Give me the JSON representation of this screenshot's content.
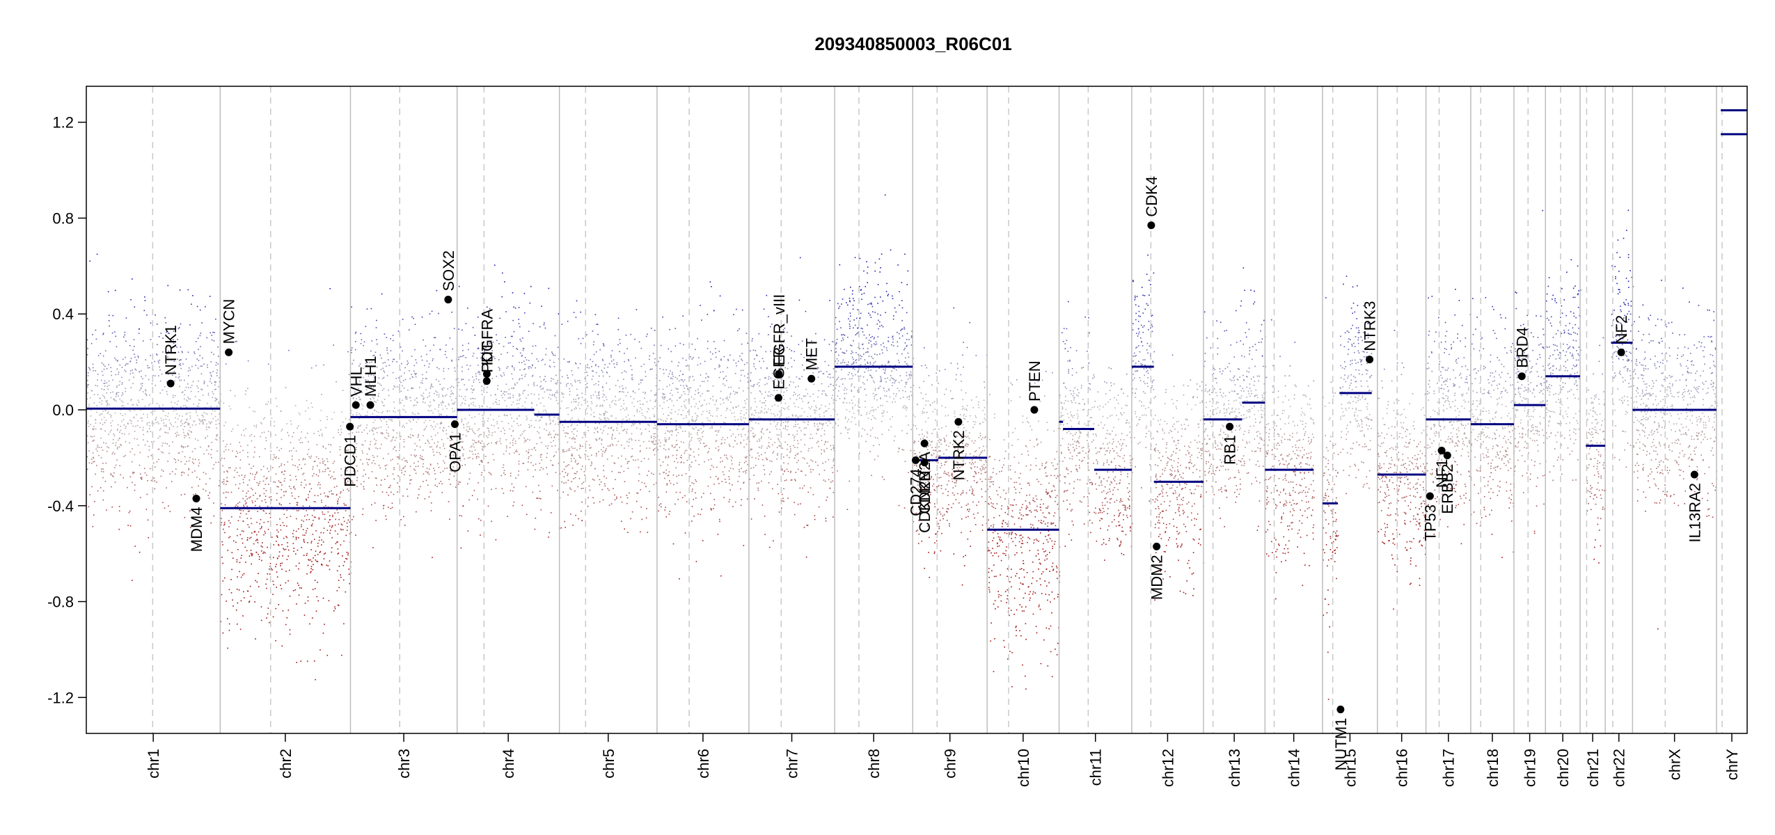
{
  "chart_data": {
    "type": "scatter",
    "title": "209340850003_R06C01",
    "xlabel": "",
    "ylabel": "",
    "ylim": [
      -1.35,
      1.35
    ],
    "yticks": [
      "1.2",
      "0.8",
      "0.4",
      "0.0",
      "-0.4",
      "-0.8",
      "-1.2"
    ],
    "y_tick_values": [
      1.2,
      0.8,
      0.4,
      0.0,
      -0.4,
      -0.8,
      -1.2
    ],
    "chromosomes": [
      {
        "name": "chr1",
        "start": 0,
        "end": 248.9,
        "centromere": 123.4
      },
      {
        "name": "chr2",
        "start": 248.9,
        "end": 491.1,
        "centromere": 342.7
      },
      {
        "name": "chr3",
        "start": 491.1,
        "end": 689.4,
        "centromere": 582.7
      },
      {
        "name": "chr4",
        "start": 689.4,
        "end": 879.6,
        "centromere": 739.4
      },
      {
        "name": "chr5",
        "start": 879.6,
        "end": 1061.1,
        "centromere": 928.3
      },
      {
        "name": "chr6",
        "start": 1061.1,
        "end": 1232.0,
        "centromere": 1120.9
      },
      {
        "name": "chr7",
        "start": 1232.0,
        "end": 1391.4,
        "centromere": 1292.0
      },
      {
        "name": "chr8",
        "start": 1391.4,
        "end": 1536.5,
        "centromere": 1436.5
      },
      {
        "name": "chr9",
        "start": 1536.5,
        "end": 1674.9,
        "centromere": 1581.9
      },
      {
        "name": "chr10",
        "start": 1674.9,
        "end": 1808.7,
        "centromere": 1714.8
      },
      {
        "name": "chr11",
        "start": 1808.7,
        "end": 1943.8,
        "centromere": 1862.8
      },
      {
        "name": "chr12",
        "start": 1943.8,
        "end": 2077.1,
        "centromere": 1979.3
      },
      {
        "name": "chr13",
        "start": 2077.1,
        "end": 2191.5,
        "centromere": 2094.8
      },
      {
        "name": "chr14",
        "start": 2191.5,
        "end": 2298.5,
        "centromere": 2208.6
      },
      {
        "name": "chr15",
        "start": 2298.5,
        "end": 2400.5,
        "centromere": 2317.5
      },
      {
        "name": "chr16",
        "start": 2400.5,
        "end": 2490.8,
        "centromere": 2437.3
      },
      {
        "name": "chr17",
        "start": 2490.8,
        "end": 2574.1,
        "centromere": 2515.3
      },
      {
        "name": "chr18",
        "start": 2574.1,
        "end": 2654.4,
        "centromere": 2592.6
      },
      {
        "name": "chr19",
        "start": 2654.4,
        "end": 2713.0,
        "centromere": 2680.6
      },
      {
        "name": "chr20",
        "start": 2713.0,
        "end": 2777.4,
        "centromere": 2741.1
      },
      {
        "name": "chr21",
        "start": 2777.4,
        "end": 2824.1,
        "centromere": 2789.6
      },
      {
        "name": "chr22",
        "start": 2824.1,
        "end": 2874.9,
        "centromere": 2838.1
      },
      {
        "name": "chrX",
        "start": 2874.9,
        "end": 3031.0,
        "centromere": 2935.6
      },
      {
        "name": "chrY",
        "start": 3031.0,
        "end": 3088.0,
        "centromere": 3041.4
      }
    ],
    "segments": [
      {
        "chr": "chr1",
        "x0": 0,
        "x1": 248.9,
        "y": 0.005
      },
      {
        "chr": "chr2",
        "x0": 248.9,
        "x1": 491.1,
        "y": -0.41
      },
      {
        "chr": "chr3",
        "x0": 491.1,
        "x1": 689.4,
        "y": -0.03
      },
      {
        "chr": "chr4",
        "x0": 689.4,
        "x1": 833.0,
        "y": 0.0
      },
      {
        "chr": "chr4",
        "x0": 833.0,
        "x1": 879.6,
        "y": -0.02
      },
      {
        "chr": "chr5",
        "x0": 879.6,
        "x1": 1061.1,
        "y": -0.05
      },
      {
        "chr": "chr6",
        "x0": 1061.1,
        "x1": 1232.0,
        "y": -0.06
      },
      {
        "chr": "chr7",
        "x0": 1232.0,
        "x1": 1391.4,
        "y": -0.04
      },
      {
        "chr": "chr8",
        "x0": 1391.4,
        "x1": 1536.5,
        "y": 0.18
      },
      {
        "chr": "chr9",
        "x0": 1536.5,
        "x1": 1584.0,
        "y": -0.21
      },
      {
        "chr": "chr9",
        "x0": 1584.0,
        "x1": 1674.9,
        "y": -0.2
      },
      {
        "chr": "chr10",
        "x0": 1674.9,
        "x1": 1808.7,
        "y": -0.5
      },
      {
        "chr": "chr11",
        "x0": 1808.7,
        "x1": 1816.0,
        "y": -0.05
      },
      {
        "chr": "chr11",
        "x0": 1816.0,
        "x1": 1874.0,
        "y": -0.08
      },
      {
        "chr": "chr11",
        "x0": 1874.0,
        "x1": 1943.8,
        "y": -0.25
      },
      {
        "chr": "chr12",
        "x0": 1943.8,
        "x1": 1985.0,
        "y": 0.18
      },
      {
        "chr": "chr12",
        "x0": 1985.0,
        "x1": 2077.1,
        "y": -0.3
      },
      {
        "chr": "chr13",
        "x0": 2077.1,
        "x1": 2149.0,
        "y": -0.04
      },
      {
        "chr": "chr13",
        "x0": 2149.0,
        "x1": 2191.5,
        "y": 0.03
      },
      {
        "chr": "chr14",
        "x0": 2191.5,
        "x1": 2282.0,
        "y": -0.25
      },
      {
        "chr": "chr15",
        "x0": 2298.5,
        "x1": 2327.0,
        "y": -0.39
      },
      {
        "chr": "chr15",
        "x0": 2330.0,
        "x1": 2390.0,
        "y": 0.07
      },
      {
        "chr": "chr16",
        "x0": 2400.5,
        "x1": 2490.8,
        "y": -0.27
      },
      {
        "chr": "chr17",
        "x0": 2490.8,
        "x1": 2574.1,
        "y": -0.04
      },
      {
        "chr": "chr18",
        "x0": 2574.1,
        "x1": 2654.4,
        "y": -0.06
      },
      {
        "chr": "chr19",
        "x0": 2654.4,
        "x1": 2713.0,
        "y": 0.02
      },
      {
        "chr": "chr20",
        "x0": 2713.0,
        "x1": 2777.4,
        "y": 0.14
      },
      {
        "chr": "chr21",
        "x0": 2788.0,
        "x1": 2824.1,
        "y": -0.15
      },
      {
        "chr": "chr22",
        "x0": 2835.0,
        "x1": 2874.9,
        "y": 0.28
      },
      {
        "chr": "chrX",
        "x0": 2874.9,
        "x1": 3031.0,
        "y": 0.0
      },
      {
        "chr": "chrY",
        "x0": 3039.0,
        "x1": 3088.0,
        "y": 1.25
      },
      {
        "chr": "chrY",
        "x0": 3039.0,
        "x1": 3088.0,
        "y": 1.15
      }
    ],
    "genes": [
      {
        "name": "NTRK1",
        "x": 156.8,
        "y": 0.11
      },
      {
        "name": "MDM4",
        "x": 204.5,
        "y": -0.37
      },
      {
        "name": "MYCN",
        "x": 264.8,
        "y": 0.24
      },
      {
        "name": "PDCD1",
        "x": 490.1,
        "y": -0.07
      },
      {
        "name": "VHL",
        "x": 501.2,
        "y": 0.02
      },
      {
        "name": "MLH1",
        "x": 528.1,
        "y": 0.02
      },
      {
        "name": "SOX2",
        "x": 672.8,
        "y": 0.46
      },
      {
        "name": "OPA1",
        "x": 685.2,
        "y": -0.06
      },
      {
        "name": "KIT",
        "x": 744.7,
        "y": 0.15
      },
      {
        "name": "PDGFRA",
        "x": 744.5,
        "y": 0.12
      },
      {
        "name": "EGFR",
        "x": 1287.0,
        "y": 0.05
      },
      {
        "name": "EGFR_vIII",
        "x": 1287.5,
        "y": 0.15
      },
      {
        "name": "MET",
        "x": 1348.2,
        "y": 0.13
      },
      {
        "name": "CD274",
        "x": 1542.0,
        "y": -0.21
      },
      {
        "name": "CDKN2A",
        "x": 1558.4,
        "y": -0.14
      },
      {
        "name": "CDKN2B",
        "x": 1558.5,
        "y": -0.22
      },
      {
        "name": "NTRK2",
        "x": 1621.5,
        "y": -0.05
      },
      {
        "name": "PTEN",
        "x": 1762.6,
        "y": 0.0
      },
      {
        "name": "CDK4",
        "x": 1980.0,
        "y": 0.77
      },
      {
        "name": "MDM2",
        "x": 1990.0,
        "y": -0.57
      },
      {
        "name": "RB1",
        "x": 2125.9,
        "y": -0.07
      },
      {
        "name": "NUTM1",
        "x": 2332.0,
        "y": -1.25
      },
      {
        "name": "NTRK3",
        "x": 2386.0,
        "y": 0.21
      },
      {
        "name": "TP53",
        "x": 2498.3,
        "y": -0.36
      },
      {
        "name": "NF1",
        "x": 2520.0,
        "y": -0.17
      },
      {
        "name": "ERBB2",
        "x": 2530.5,
        "y": -0.19
      },
      {
        "name": "BRD4",
        "x": 2669.0,
        "y": 0.14
      },
      {
        "name": "NF2",
        "x": 2853.8,
        "y": 0.24
      },
      {
        "name": "IL13RA2",
        "x": 2990.0,
        "y": -0.27
      }
    ],
    "colors": {
      "gain": "#1a1ab0",
      "loss": "#a01010",
      "neutral": "#b8b8b8",
      "segment": "#000080",
      "gene_marker": "#000000"
    }
  }
}
